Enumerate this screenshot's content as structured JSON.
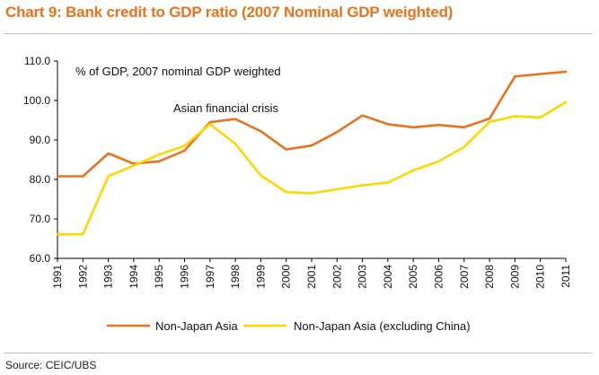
{
  "header": {
    "title": "Chart 9: Bank credit to GDP ratio (2007 Nominal GDP weighted)"
  },
  "footer": {
    "source": "Source: CEIC/UBS"
  },
  "chart_data": {
    "type": "line",
    "annotations": [
      "% of GDP,  2007 nominal GDP weighted",
      "Asian financial crisis"
    ],
    "x": [
      "1991",
      "1992",
      "1993",
      "1994",
      "1995",
      "1996",
      "1997",
      "1998",
      "1999",
      "2000",
      "2001",
      "2002",
      "2003",
      "2004",
      "2005",
      "2006",
      "2007",
      "2008",
      "2009",
      "2010",
      "2011"
    ],
    "ylim": [
      60,
      110
    ],
    "yticks": [
      "110.0",
      "100.0",
      "90.0",
      "80.0",
      "70.0",
      "60.0"
    ],
    "grid": false,
    "legend": "bottom",
    "series": [
      {
        "name": "Non-Japan Asia",
        "color": "#e8731e",
        "values": [
          80.8,
          80.8,
          86.6,
          84.0,
          84.6,
          87.3,
          94.5,
          95.3,
          92.2,
          87.6,
          88.6,
          92.0,
          96.2,
          94.0,
          93.2,
          93.8,
          93.2,
          95.4,
          106.1,
          106.7,
          107.3
        ]
      },
      {
        "name": "Non-Japan Asia (excluding China)",
        "color": "#ffd700",
        "values": [
          66.1,
          66.1,
          80.8,
          83.5,
          86.3,
          88.5,
          94.0,
          89.0,
          81.0,
          76.8,
          76.5,
          77.5,
          78.5,
          79.2,
          82.3,
          84.6,
          88.2,
          94.6,
          96.0,
          95.7,
          99.6
        ]
      }
    ]
  }
}
